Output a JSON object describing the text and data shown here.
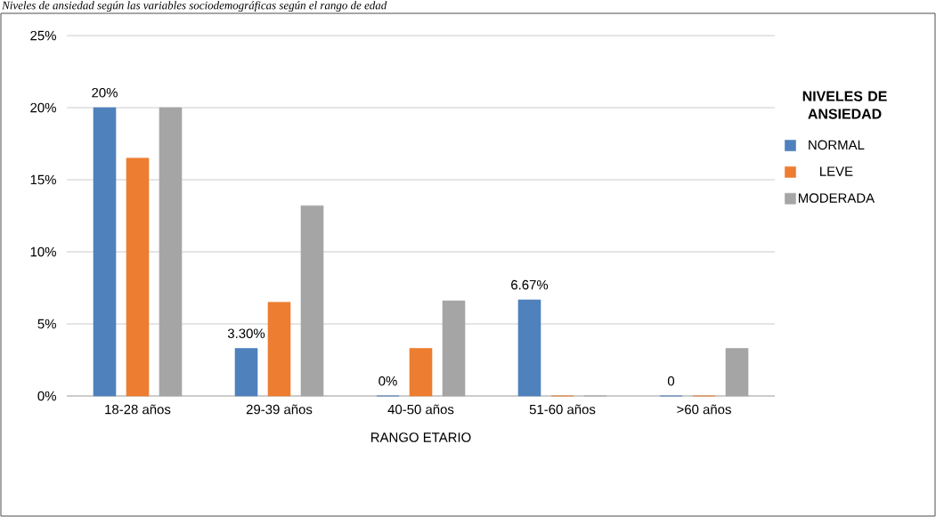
{
  "chart_data": {
    "type": "bar",
    "title": "*Niveles de ansiedad según las variables sociodemográficas según el rango de edad*",
    "xlabel": "RANGO ETARIO",
    "legend_title": "**NIVELES DE ANSIEDAD**",
    "categories": [
      "18-28 años",
      "29-39 años",
      "40-50 años",
      "51-60 años",
      ">60 años"
    ],
    "series": [
      {
        "name": "NORMAL",
        "color": "#4f81bd",
        "values": [
          20,
          3.3,
          0,
          6.67,
          0
        ],
        "value_labels": [
          "20%",
          "3.30%",
          "0%",
          "6.67%",
          "0"
        ]
      },
      {
        "name": "LEVE",
        "color": "#ed7d31",
        "values": [
          16.5,
          6.5,
          3.3,
          0,
          0
        ]
      },
      {
        "name": "MODERADA",
        "color": "#a5a5a5",
        "values": [
          20,
          13.2,
          6.6,
          0,
          3.3
        ]
      }
    ],
    "ylim": [
      0,
      25
    ],
    "yticks": [
      {
        "value": 0,
        "label": "0%"
      },
      {
        "value": 5,
        "label": "5%"
      },
      {
        "value": 10,
        "label": "10%"
      },
      {
        "value": 15,
        "label": "15%"
      },
      {
        "value": 20,
        "label": "20%"
      },
      {
        "value": 25,
        "label": "25%"
      }
    ],
    "grid": "y",
    "legend": "right"
  }
}
